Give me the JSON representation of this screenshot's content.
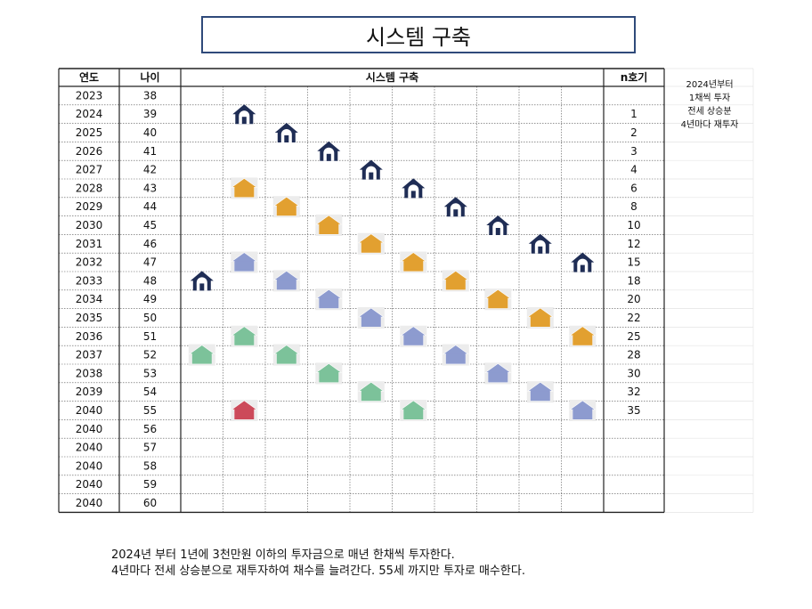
{
  "title": "시스템 구축",
  "table": {
    "headers": {
      "year": "연도",
      "age": "나이",
      "system": "시스템 구축",
      "count": "n호기"
    },
    "rows": [
      {
        "year": "2023",
        "age": "38",
        "count": ""
      },
      {
        "year": "2024",
        "age": "39",
        "count": "1"
      },
      {
        "year": "2025",
        "age": "40",
        "count": "2"
      },
      {
        "year": "2026",
        "age": "41",
        "count": "3"
      },
      {
        "year": "2027",
        "age": "42",
        "count": "4"
      },
      {
        "year": "2028",
        "age": "43",
        "count": "6"
      },
      {
        "year": "2029",
        "age": "44",
        "count": "8"
      },
      {
        "year": "2030",
        "age": "45",
        "count": "10"
      },
      {
        "year": "2031",
        "age": "46",
        "count": "12"
      },
      {
        "year": "2032",
        "age": "47",
        "count": "15"
      },
      {
        "year": "2033",
        "age": "48",
        "count": "18"
      },
      {
        "year": "2034",
        "age": "49",
        "count": "20"
      },
      {
        "year": "2035",
        "age": "50",
        "count": "22"
      },
      {
        "year": "2036",
        "age": "51",
        "count": "25"
      },
      {
        "year": "2037",
        "age": "52",
        "count": "28"
      },
      {
        "year": "2038",
        "age": "53",
        "count": "30"
      },
      {
        "year": "2039",
        "age": "54",
        "count": "32"
      },
      {
        "year": "2040",
        "age": "55",
        "count": "35"
      },
      {
        "year": "2040",
        "age": "56",
        "count": ""
      },
      {
        "year": "2040",
        "age": "57",
        "count": ""
      },
      {
        "year": "2040",
        "age": "58",
        "count": ""
      },
      {
        "year": "2040",
        "age": "59",
        "count": ""
      },
      {
        "year": "2040",
        "age": "60",
        "count": ""
      }
    ],
    "system_columns": 10
  },
  "houses": [
    {
      "row": 10,
      "col": 0,
      "type": "dark"
    },
    {
      "row": 14,
      "col": 0,
      "type": "green"
    },
    {
      "row": 1,
      "col": 1,
      "type": "dark"
    },
    {
      "row": 5,
      "col": 1,
      "type": "orange"
    },
    {
      "row": 9,
      "col": 1,
      "type": "blue"
    },
    {
      "row": 13,
      "col": 1,
      "type": "green"
    },
    {
      "row": 17,
      "col": 1,
      "type": "red"
    },
    {
      "row": 2,
      "col": 2,
      "type": "dark"
    },
    {
      "row": 6,
      "col": 2,
      "type": "orange"
    },
    {
      "row": 10,
      "col": 2,
      "type": "blue"
    },
    {
      "row": 14,
      "col": 2,
      "type": "green"
    },
    {
      "row": 3,
      "col": 3,
      "type": "dark"
    },
    {
      "row": 7,
      "col": 3,
      "type": "orange"
    },
    {
      "row": 11,
      "col": 3,
      "type": "blue"
    },
    {
      "row": 15,
      "col": 3,
      "type": "green"
    },
    {
      "row": 4,
      "col": 4,
      "type": "dark"
    },
    {
      "row": 8,
      "col": 4,
      "type": "orange"
    },
    {
      "row": 12,
      "col": 4,
      "type": "blue"
    },
    {
      "row": 16,
      "col": 4,
      "type": "green"
    },
    {
      "row": 5,
      "col": 5,
      "type": "dark"
    },
    {
      "row": 9,
      "col": 5,
      "type": "orange"
    },
    {
      "row": 13,
      "col": 5,
      "type": "blue"
    },
    {
      "row": 17,
      "col": 5,
      "type": "green"
    },
    {
      "row": 6,
      "col": 6,
      "type": "dark"
    },
    {
      "row": 10,
      "col": 6,
      "type": "orange"
    },
    {
      "row": 14,
      "col": 6,
      "type": "blue"
    },
    {
      "row": 7,
      "col": 7,
      "type": "dark"
    },
    {
      "row": 11,
      "col": 7,
      "type": "orange"
    },
    {
      "row": 15,
      "col": 7,
      "type": "blue"
    },
    {
      "row": 8,
      "col": 8,
      "type": "dark"
    },
    {
      "row": 12,
      "col": 8,
      "type": "orange"
    },
    {
      "row": 16,
      "col": 8,
      "type": "blue"
    },
    {
      "row": 9,
      "col": 9,
      "type": "dark"
    },
    {
      "row": 13,
      "col": 9,
      "type": "orange"
    },
    {
      "row": 17,
      "col": 9,
      "type": "blue"
    }
  ],
  "house_colors": {
    "dark": "#1f2d55",
    "orange": "#e2a030",
    "blue": "#8d9bcf",
    "green": "#7cc29a",
    "red": "#cc4a5a"
  },
  "side_note": [
    "2024년부터",
    "1채씩 투자",
    "전세 상승분",
    "4년마다 재투자"
  ],
  "notes": [
    "2024년 부터 1년에 3천만원 이하의 투자금으로 매년 한채씩 투자한다.",
    "4년마다 전세 상승분으로 재투자하여 채수를 늘려간다. 55세 까지만 투자로 매수한다."
  ]
}
